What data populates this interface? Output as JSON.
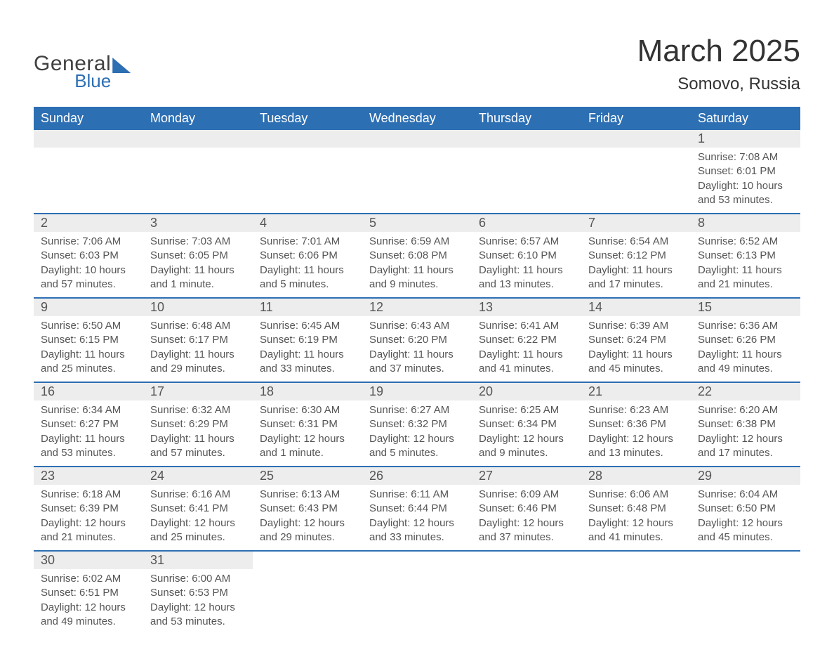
{
  "logo": {
    "general": "General",
    "blue": "Blue"
  },
  "header": {
    "title": "March 2025",
    "subtitle": "Somovo, Russia"
  },
  "colors": {
    "header_bg": "#2d6fb3",
    "header_text": "#ffffff",
    "daynum_bg": "#ededed",
    "row_border": "#2d6fb3",
    "body_text": "#555555",
    "title_text": "#333333",
    "page_bg": "#ffffff"
  },
  "typography": {
    "title_fontsize": 44,
    "subtitle_fontsize": 24,
    "weekday_fontsize": 18,
    "daynum_fontsize": 18,
    "detail_fontsize": 15,
    "font_family": "Arial"
  },
  "calendar": {
    "type": "table",
    "weekdays": [
      "Sunday",
      "Monday",
      "Tuesday",
      "Wednesday",
      "Thursday",
      "Friday",
      "Saturday"
    ],
    "weeks": [
      [
        null,
        null,
        null,
        null,
        null,
        null,
        {
          "n": "1",
          "sunrise": "Sunrise: 7:08 AM",
          "sunset": "Sunset: 6:01 PM",
          "daylight": "Daylight: 10 hours and 53 minutes."
        }
      ],
      [
        {
          "n": "2",
          "sunrise": "Sunrise: 7:06 AM",
          "sunset": "Sunset: 6:03 PM",
          "daylight": "Daylight: 10 hours and 57 minutes."
        },
        {
          "n": "3",
          "sunrise": "Sunrise: 7:03 AM",
          "sunset": "Sunset: 6:05 PM",
          "daylight": "Daylight: 11 hours and 1 minute."
        },
        {
          "n": "4",
          "sunrise": "Sunrise: 7:01 AM",
          "sunset": "Sunset: 6:06 PM",
          "daylight": "Daylight: 11 hours and 5 minutes."
        },
        {
          "n": "5",
          "sunrise": "Sunrise: 6:59 AM",
          "sunset": "Sunset: 6:08 PM",
          "daylight": "Daylight: 11 hours and 9 minutes."
        },
        {
          "n": "6",
          "sunrise": "Sunrise: 6:57 AM",
          "sunset": "Sunset: 6:10 PM",
          "daylight": "Daylight: 11 hours and 13 minutes."
        },
        {
          "n": "7",
          "sunrise": "Sunrise: 6:54 AM",
          "sunset": "Sunset: 6:12 PM",
          "daylight": "Daylight: 11 hours and 17 minutes."
        },
        {
          "n": "8",
          "sunrise": "Sunrise: 6:52 AM",
          "sunset": "Sunset: 6:13 PM",
          "daylight": "Daylight: 11 hours and 21 minutes."
        }
      ],
      [
        {
          "n": "9",
          "sunrise": "Sunrise: 6:50 AM",
          "sunset": "Sunset: 6:15 PM",
          "daylight": "Daylight: 11 hours and 25 minutes."
        },
        {
          "n": "10",
          "sunrise": "Sunrise: 6:48 AM",
          "sunset": "Sunset: 6:17 PM",
          "daylight": "Daylight: 11 hours and 29 minutes."
        },
        {
          "n": "11",
          "sunrise": "Sunrise: 6:45 AM",
          "sunset": "Sunset: 6:19 PM",
          "daylight": "Daylight: 11 hours and 33 minutes."
        },
        {
          "n": "12",
          "sunrise": "Sunrise: 6:43 AM",
          "sunset": "Sunset: 6:20 PM",
          "daylight": "Daylight: 11 hours and 37 minutes."
        },
        {
          "n": "13",
          "sunrise": "Sunrise: 6:41 AM",
          "sunset": "Sunset: 6:22 PM",
          "daylight": "Daylight: 11 hours and 41 minutes."
        },
        {
          "n": "14",
          "sunrise": "Sunrise: 6:39 AM",
          "sunset": "Sunset: 6:24 PM",
          "daylight": "Daylight: 11 hours and 45 minutes."
        },
        {
          "n": "15",
          "sunrise": "Sunrise: 6:36 AM",
          "sunset": "Sunset: 6:26 PM",
          "daylight": "Daylight: 11 hours and 49 minutes."
        }
      ],
      [
        {
          "n": "16",
          "sunrise": "Sunrise: 6:34 AM",
          "sunset": "Sunset: 6:27 PM",
          "daylight": "Daylight: 11 hours and 53 minutes."
        },
        {
          "n": "17",
          "sunrise": "Sunrise: 6:32 AM",
          "sunset": "Sunset: 6:29 PM",
          "daylight": "Daylight: 11 hours and 57 minutes."
        },
        {
          "n": "18",
          "sunrise": "Sunrise: 6:30 AM",
          "sunset": "Sunset: 6:31 PM",
          "daylight": "Daylight: 12 hours and 1 minute."
        },
        {
          "n": "19",
          "sunrise": "Sunrise: 6:27 AM",
          "sunset": "Sunset: 6:32 PM",
          "daylight": "Daylight: 12 hours and 5 minutes."
        },
        {
          "n": "20",
          "sunrise": "Sunrise: 6:25 AM",
          "sunset": "Sunset: 6:34 PM",
          "daylight": "Daylight: 12 hours and 9 minutes."
        },
        {
          "n": "21",
          "sunrise": "Sunrise: 6:23 AM",
          "sunset": "Sunset: 6:36 PM",
          "daylight": "Daylight: 12 hours and 13 minutes."
        },
        {
          "n": "22",
          "sunrise": "Sunrise: 6:20 AM",
          "sunset": "Sunset: 6:38 PM",
          "daylight": "Daylight: 12 hours and 17 minutes."
        }
      ],
      [
        {
          "n": "23",
          "sunrise": "Sunrise: 6:18 AM",
          "sunset": "Sunset: 6:39 PM",
          "daylight": "Daylight: 12 hours and 21 minutes."
        },
        {
          "n": "24",
          "sunrise": "Sunrise: 6:16 AM",
          "sunset": "Sunset: 6:41 PM",
          "daylight": "Daylight: 12 hours and 25 minutes."
        },
        {
          "n": "25",
          "sunrise": "Sunrise: 6:13 AM",
          "sunset": "Sunset: 6:43 PM",
          "daylight": "Daylight: 12 hours and 29 minutes."
        },
        {
          "n": "26",
          "sunrise": "Sunrise: 6:11 AM",
          "sunset": "Sunset: 6:44 PM",
          "daylight": "Daylight: 12 hours and 33 minutes."
        },
        {
          "n": "27",
          "sunrise": "Sunrise: 6:09 AM",
          "sunset": "Sunset: 6:46 PM",
          "daylight": "Daylight: 12 hours and 37 minutes."
        },
        {
          "n": "28",
          "sunrise": "Sunrise: 6:06 AM",
          "sunset": "Sunset: 6:48 PM",
          "daylight": "Daylight: 12 hours and 41 minutes."
        },
        {
          "n": "29",
          "sunrise": "Sunrise: 6:04 AM",
          "sunset": "Sunset: 6:50 PM",
          "daylight": "Daylight: 12 hours and 45 minutes."
        }
      ],
      [
        {
          "n": "30",
          "sunrise": "Sunrise: 6:02 AM",
          "sunset": "Sunset: 6:51 PM",
          "daylight": "Daylight: 12 hours and 49 minutes."
        },
        {
          "n": "31",
          "sunrise": "Sunrise: 6:00 AM",
          "sunset": "Sunset: 6:53 PM",
          "daylight": "Daylight: 12 hours and 53 minutes."
        },
        null,
        null,
        null,
        null,
        null
      ]
    ]
  }
}
